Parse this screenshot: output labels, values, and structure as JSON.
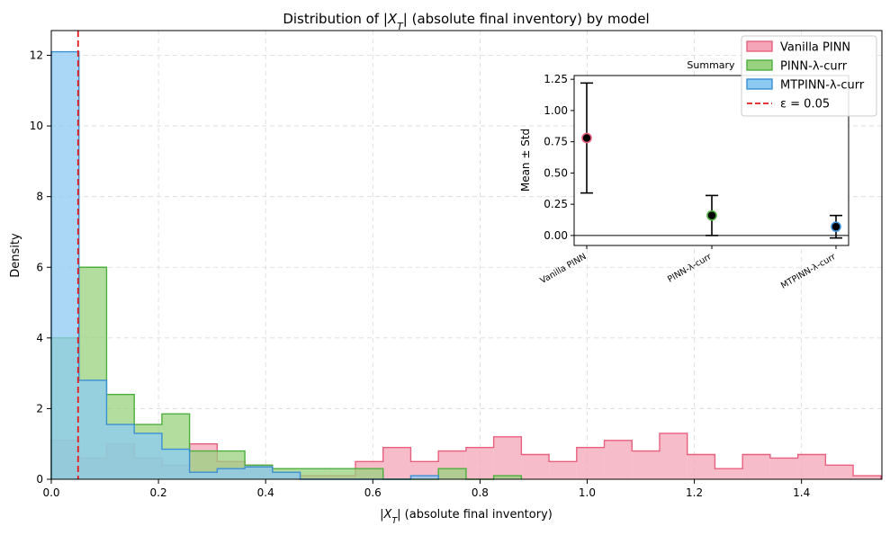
{
  "chart_data": [
    {
      "type": "histogram",
      "title": "Distribution of |X_T| (absolute final inventory) by model",
      "title_parts": {
        "prefix": "Distribution of |",
        "var": "X",
        "sub": "T",
        "suffix": "| (absolute final inventory) by model"
      },
      "xlabel": "|X_T|  (absolute final inventory)",
      "xlabel_parts": {
        "prefix": "|",
        "var": "X",
        "sub": "T",
        "suffix": "|  (absolute final inventory)"
      },
      "ylabel": "Density",
      "xlim": [
        0,
        1.55
      ],
      "ylim": [
        0,
        12.7
      ],
      "xticks": [
        0.0,
        0.2,
        0.4,
        0.6,
        0.8,
        1.0,
        1.2,
        1.4
      ],
      "xtick_labels": [
        "0.0",
        "0.2",
        "0.4",
        "0.6",
        "0.8",
        "1.0",
        "1.2",
        "1.4"
      ],
      "yticks": [
        0,
        2,
        4,
        6,
        8,
        10,
        12
      ],
      "ytick_labels": [
        "0",
        "2",
        "4",
        "6",
        "8",
        "10",
        "12"
      ],
      "grid": true,
      "legend_position": "top-right",
      "vline": {
        "x": 0.05,
        "label": "ε = 0.05",
        "color": "#e41a1c",
        "style": "dashed"
      },
      "series": [
        {
          "name": "Vanilla PINN",
          "fill": "#f4a6b8",
          "stroke": "#e8607e",
          "edges": [
            0,
            0.0516,
            0.1032,
            0.1548,
            0.2064,
            0.258,
            0.3096,
            0.3612,
            0.4128,
            0.4644,
            0.516,
            0.5676,
            0.6192,
            0.6708,
            0.7224,
            0.774,
            0.8256,
            0.8772,
            0.9288,
            0.9804,
            1.032,
            1.0836,
            1.1352,
            1.1868,
            1.2384,
            1.29,
            1.3416,
            1.3932,
            1.4448,
            1.4964,
            1.548
          ],
          "values": [
            1.1,
            0.6,
            1.0,
            0.6,
            0.4,
            1.0,
            0.5,
            0.4,
            0.2,
            0.1,
            0.1,
            0.5,
            0.9,
            0.5,
            0.8,
            0.9,
            1.2,
            0.7,
            0.5,
            0.9,
            1.1,
            0.8,
            1.3,
            0.7,
            0.3,
            0.7,
            0.6,
            0.7,
            0.4,
            0.1
          ]
        },
        {
          "name": "PINN-λ-curr",
          "fill": "#99d27f",
          "stroke": "#4daf3e",
          "edges": [
            0,
            0.0516,
            0.1032,
            0.1548,
            0.2064,
            0.258,
            0.3096,
            0.3612,
            0.4128,
            0.4644,
            0.516,
            0.5676,
            0.6192,
            0.6708,
            0.7224,
            0.774,
            0.8256,
            0.8772
          ],
          "values": [
            4.0,
            6.0,
            2.4,
            1.55,
            1.85,
            0.8,
            0.8,
            0.4,
            0.3,
            0.3,
            0.3,
            0.3,
            0.0,
            0.0,
            0.3,
            0.0,
            0.1
          ]
        },
        {
          "name": "MTPINN-λ-curr",
          "fill": "#8ccaf2",
          "stroke": "#3b8fd4",
          "edges": [
            0,
            0.0516,
            0.1032,
            0.1548,
            0.2064,
            0.258,
            0.3096,
            0.3612,
            0.4128,
            0.4644,
            0.516,
            0.5676,
            0.6192,
            0.6708,
            0.7224
          ],
          "values": [
            12.1,
            2.8,
            1.55,
            1.3,
            0.85,
            0.2,
            0.3,
            0.35,
            0.2,
            0.0,
            0.0,
            0.0,
            0.0,
            0.1,
            0.0
          ]
        }
      ]
    },
    {
      "type": "errorbar",
      "title": "Summary",
      "ylabel": "Mean ± Std",
      "ylim": [
        -0.08,
        1.28
      ],
      "yticks": [
        0.0,
        0.25,
        0.5,
        0.75,
        1.0,
        1.25
      ],
      "ytick_labels": [
        "0.00",
        "0.25",
        "0.50",
        "0.75",
        "1.00",
        "1.25"
      ],
      "categories": [
        "Vanilla PINN",
        "PINN-λ-curr",
        "MTPINN-λ-curr"
      ],
      "means": [
        0.78,
        0.16,
        0.07
      ],
      "stds": [
        0.44,
        0.16,
        0.09
      ],
      "marker_edges": [
        "#e8607e",
        "#4daf3e",
        "#3b8fd4"
      ],
      "hline": 0.0
    }
  ]
}
